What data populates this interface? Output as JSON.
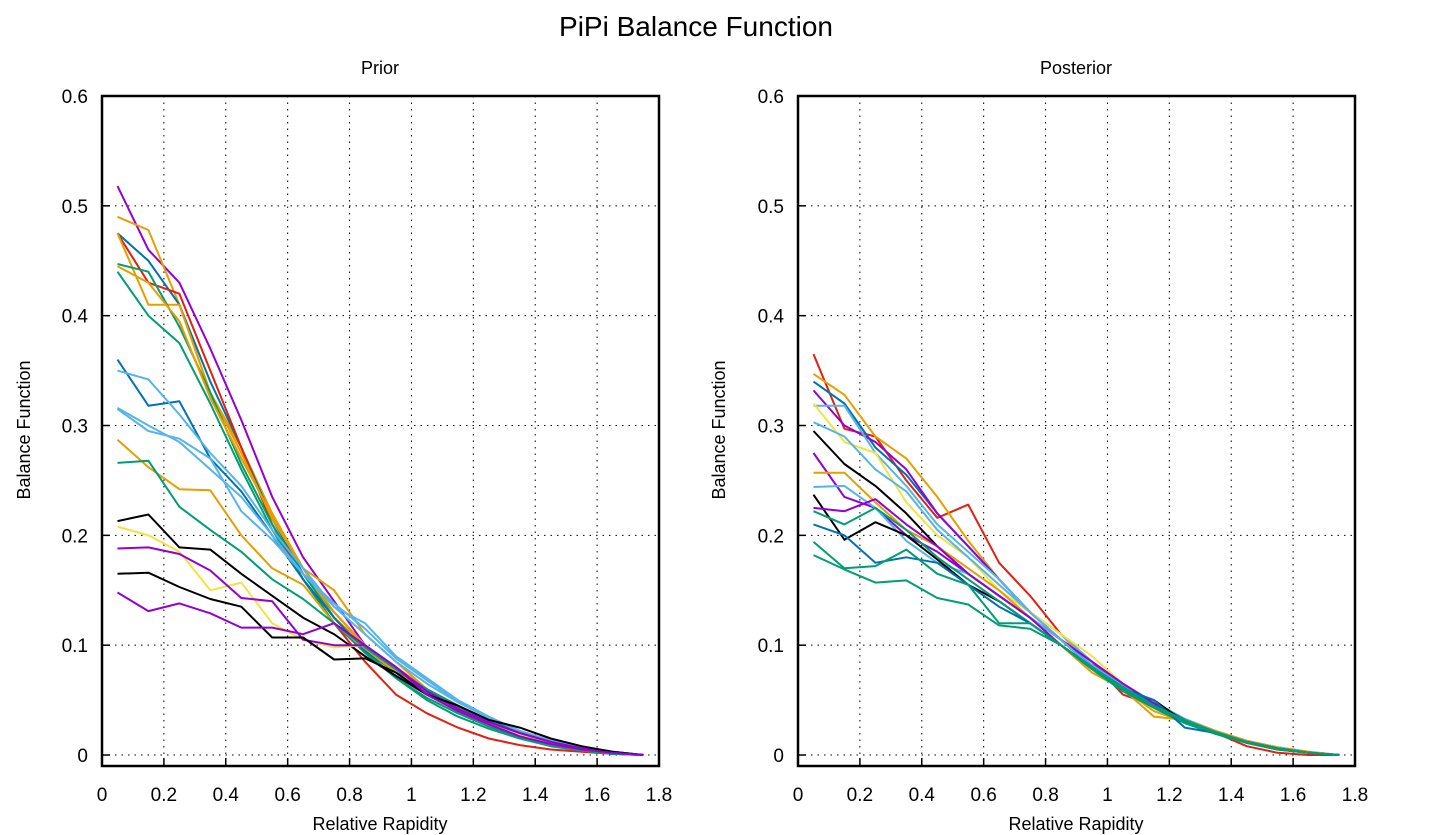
{
  "figure": {
    "title": "PiPi Balance Function"
  },
  "chart_data": [
    {
      "type": "line",
      "title": "Prior",
      "xlabel": "Relative Rapidity",
      "ylabel": "Balance Function",
      "xlim": [
        0,
        1.8
      ],
      "ylim": [
        -0.01,
        0.6
      ],
      "xticks": [
        0,
        0.2,
        0.4,
        0.6,
        0.8,
        1,
        1.2,
        1.4,
        1.6,
        1.8
      ],
      "yticks": [
        0,
        0.1,
        0.2,
        0.3,
        0.4,
        0.5,
        0.6
      ],
      "xtick_labels": [
        "0",
        "0.2",
        "0.4",
        "0.6",
        "0.8",
        "1",
        "1.2",
        "1.4",
        "1.6",
        "1.8"
      ],
      "ytick_labels": [
        "0",
        "0.1",
        "0.2",
        "0.3",
        "0.4",
        "0.5",
        "0.6"
      ],
      "grid": true,
      "x": [
        0.05,
        0.15,
        0.25,
        0.35,
        0.45,
        0.55,
        0.65,
        0.75,
        0.85,
        0.95,
        1.05,
        1.15,
        1.25,
        1.35,
        1.45,
        1.55,
        1.65,
        1.75
      ],
      "series": [
        {
          "color": "#9400d3",
          "values": [
            0.518,
            0.46,
            0.43,
            0.37,
            0.305,
            0.235,
            0.18,
            0.14,
            0.1,
            0.075,
            0.055,
            0.04,
            0.028,
            0.018,
            0.01,
            0.006,
            0.003,
            0.0
          ]
        },
        {
          "color": "#e69f00",
          "values": [
            0.49,
            0.478,
            0.41,
            0.33,
            0.28,
            0.22,
            0.17,
            0.15,
            0.11,
            0.085,
            0.06,
            0.045,
            0.03,
            0.02,
            0.012,
            0.006,
            0.002,
            0.0
          ]
        },
        {
          "color": "#0072b2",
          "values": [
            0.475,
            0.45,
            0.41,
            0.34,
            0.28,
            0.215,
            0.165,
            0.13,
            0.1,
            0.078,
            0.057,
            0.042,
            0.03,
            0.02,
            0.012,
            0.006,
            0.002,
            0.0
          ]
        },
        {
          "color": "#e51e10",
          "values": [
            0.475,
            0.43,
            0.42,
            0.35,
            0.28,
            0.21,
            0.16,
            0.12,
            0.085,
            0.055,
            0.038,
            0.025,
            0.015,
            0.009,
            0.005,
            0.003,
            0.001,
            0.0
          ]
        },
        {
          "color": "#e69f00",
          "values": [
            0.475,
            0.41,
            0.41,
            0.33,
            0.275,
            0.215,
            0.17,
            0.125,
            0.1,
            0.08,
            0.06,
            0.045,
            0.032,
            0.02,
            0.011,
            0.005,
            0.002,
            0.0
          ]
        },
        {
          "color": "#009e73",
          "values": [
            0.447,
            0.44,
            0.39,
            0.33,
            0.265,
            0.21,
            0.165,
            0.125,
            0.095,
            0.07,
            0.05,
            0.035,
            0.024,
            0.015,
            0.008,
            0.004,
            0.001,
            0.0
          ]
        },
        {
          "color": "#009e73",
          "values": [
            0.44,
            0.4,
            0.375,
            0.32,
            0.26,
            0.205,
            0.16,
            0.12,
            0.093,
            0.07,
            0.052,
            0.038,
            0.026,
            0.016,
            0.009,
            0.004,
            0.001,
            0.0
          ]
        },
        {
          "color": "#e69f00",
          "values": [
            0.445,
            0.43,
            0.395,
            0.325,
            0.27,
            0.218,
            0.17,
            0.13,
            0.1,
            0.075,
            0.055,
            0.04,
            0.028,
            0.018,
            0.01,
            0.005,
            0.002,
            0.0
          ]
        },
        {
          "color": "#0072b2",
          "values": [
            0.36,
            0.318,
            0.322,
            0.27,
            0.24,
            0.2,
            0.16,
            0.125,
            0.095,
            0.075,
            0.06,
            0.045,
            0.032,
            0.022,
            0.013,
            0.007,
            0.003,
            0.0
          ]
        },
        {
          "color": "#56b4e9",
          "values": [
            0.35,
            0.342,
            0.31,
            0.275,
            0.245,
            0.205,
            0.17,
            0.135,
            0.11,
            0.085,
            0.065,
            0.048,
            0.034,
            0.022,
            0.013,
            0.007,
            0.003,
            0.0
          ]
        },
        {
          "color": "#56b4e9",
          "values": [
            0.316,
            0.3,
            0.285,
            0.26,
            0.235,
            0.2,
            0.165,
            0.135,
            0.12,
            0.09,
            0.07,
            0.05,
            0.035,
            0.022,
            0.013,
            0.007,
            0.003,
            0.0
          ]
        },
        {
          "color": "#56b4e9",
          "values": [
            0.315,
            0.295,
            0.288,
            0.27,
            0.222,
            0.196,
            0.165,
            0.138,
            0.115,
            0.088,
            0.068,
            0.049,
            0.034,
            0.022,
            0.013,
            0.007,
            0.003,
            0.0
          ]
        },
        {
          "color": "#e69f00",
          "values": [
            0.287,
            0.262,
            0.242,
            0.241,
            0.2,
            0.17,
            0.155,
            0.12,
            0.097,
            0.075,
            0.058,
            0.042,
            0.03,
            0.02,
            0.012,
            0.006,
            0.002,
            0.0
          ]
        },
        {
          "color": "#009e73",
          "values": [
            0.266,
            0.268,
            0.226,
            0.205,
            0.185,
            0.16,
            0.142,
            0.12,
            0.098,
            0.078,
            0.06,
            0.044,
            0.031,
            0.02,
            0.012,
            0.006,
            0.002,
            0.0
          ]
        },
        {
          "color": "#000000",
          "values": [
            0.213,
            0.219,
            0.189,
            0.187,
            0.165,
            0.145,
            0.125,
            0.11,
            0.09,
            0.072,
            0.055,
            0.04,
            0.028,
            0.018,
            0.01,
            0.005,
            0.002,
            0.0
          ]
        },
        {
          "color": "#f0e442",
          "values": [
            0.208,
            0.2,
            0.185,
            0.15,
            0.157,
            0.12,
            0.105,
            0.098,
            0.1,
            0.08,
            0.055,
            0.04,
            0.028,
            0.018,
            0.01,
            0.005,
            0.002,
            0.0
          ]
        },
        {
          "color": "#9400d3",
          "values": [
            0.188,
            0.189,
            0.183,
            0.168,
            0.143,
            0.14,
            0.105,
            0.1,
            0.1,
            0.08,
            0.058,
            0.042,
            0.03,
            0.02,
            0.012,
            0.006,
            0.002,
            0.0
          ]
        },
        {
          "color": "#000000",
          "values": [
            0.165,
            0.166,
            0.153,
            0.142,
            0.135,
            0.107,
            0.107,
            0.087,
            0.088,
            0.075,
            0.055,
            0.045,
            0.032,
            0.025,
            0.015,
            0.008,
            0.003,
            0.0
          ]
        },
        {
          "color": "#9400d3",
          "values": [
            0.148,
            0.131,
            0.138,
            0.129,
            0.116,
            0.116,
            0.11,
            0.12,
            0.1,
            0.08,
            0.055,
            0.04,
            0.028,
            0.017,
            0.01,
            0.005,
            0.002,
            0.0
          ]
        }
      ]
    },
    {
      "type": "line",
      "title": "Posterior",
      "xlabel": "Relative Rapidity",
      "ylabel": "Balance Function",
      "xlim": [
        0,
        1.8
      ],
      "ylim": [
        -0.01,
        0.6
      ],
      "xticks": [
        0,
        0.2,
        0.4,
        0.6,
        0.8,
        1,
        1.2,
        1.4,
        1.6,
        1.8
      ],
      "yticks": [
        0,
        0.1,
        0.2,
        0.3,
        0.4,
        0.5,
        0.6
      ],
      "xtick_labels": [
        "0",
        "0.2",
        "0.4",
        "0.6",
        "0.8",
        "1",
        "1.2",
        "1.4",
        "1.6",
        "1.8"
      ],
      "ytick_labels": [
        "0",
        "0.1",
        "0.2",
        "0.3",
        "0.4",
        "0.5",
        "0.6"
      ],
      "grid": true,
      "x": [
        0.05,
        0.15,
        0.25,
        0.35,
        0.45,
        0.55,
        0.65,
        0.75,
        0.85,
        0.95,
        1.05,
        1.15,
        1.25,
        1.35,
        1.45,
        1.55,
        1.65,
        1.75
      ],
      "series": [
        {
          "color": "#e51e10",
          "values": [
            0.365,
            0.297,
            0.29,
            0.25,
            0.216,
            0.228,
            0.175,
            0.145,
            0.11,
            0.085,
            0.055,
            0.045,
            0.03,
            0.02,
            0.008,
            0.002,
            0.0,
            0.0
          ]
        },
        {
          "color": "#e69f00",
          "values": [
            0.347,
            0.328,
            0.29,
            0.27,
            0.235,
            0.195,
            0.16,
            0.13,
            0.11,
            0.08,
            0.06,
            0.04,
            0.03,
            0.02,
            0.012,
            0.006,
            0.002,
            0.0
          ]
        },
        {
          "color": "#0072b2",
          "values": [
            0.34,
            0.32,
            0.28,
            0.255,
            0.22,
            0.19,
            0.16,
            0.13,
            0.105,
            0.08,
            0.06,
            0.045,
            0.03,
            0.02,
            0.012,
            0.006,
            0.002,
            0.0
          ]
        },
        {
          "color": "#9400d3",
          "values": [
            0.332,
            0.3,
            0.285,
            0.26,
            0.22,
            0.19,
            0.16,
            0.13,
            0.105,
            0.085,
            0.063,
            0.046,
            0.032,
            0.021,
            0.012,
            0.006,
            0.002,
            0.0
          ]
        },
        {
          "color": "#56b4e9",
          "values": [
            0.318,
            0.318,
            0.275,
            0.245,
            0.21,
            0.185,
            0.16,
            0.13,
            0.11,
            0.085,
            0.065,
            0.048,
            0.033,
            0.022,
            0.013,
            0.007,
            0.003,
            0.0
          ]
        },
        {
          "color": "#f0e442",
          "values": [
            0.32,
            0.285,
            0.275,
            0.23,
            0.2,
            0.18,
            0.15,
            0.13,
            0.11,
            0.09,
            0.065,
            0.045,
            0.032,
            0.021,
            0.012,
            0.006,
            0.002,
            0.0
          ]
        },
        {
          "color": "#56b4e9",
          "values": [
            0.303,
            0.29,
            0.26,
            0.24,
            0.205,
            0.18,
            0.155,
            0.13,
            0.105,
            0.082,
            0.063,
            0.046,
            0.032,
            0.021,
            0.012,
            0.006,
            0.002,
            0.0
          ]
        },
        {
          "color": "#000000",
          "values": [
            0.295,
            0.265,
            0.245,
            0.22,
            0.19,
            0.165,
            0.145,
            0.125,
            0.105,
            0.08,
            0.06,
            0.045,
            0.03,
            0.02,
            0.011,
            0.005,
            0.002,
            0.0
          ]
        },
        {
          "color": "#9400d3",
          "values": [
            0.275,
            0.235,
            0.225,
            0.2,
            0.185,
            0.165,
            0.145,
            0.125,
            0.105,
            0.085,
            0.065,
            0.047,
            0.032,
            0.021,
            0.012,
            0.006,
            0.002,
            0.0
          ]
        },
        {
          "color": "#e69f00",
          "values": [
            0.257,
            0.257,
            0.23,
            0.205,
            0.19,
            0.17,
            0.15,
            0.125,
            0.1,
            0.075,
            0.06,
            0.035,
            0.032,
            0.022,
            0.013,
            0.007,
            0.003,
            0.0
          ]
        },
        {
          "color": "#56b4e9",
          "values": [
            0.244,
            0.245,
            0.225,
            0.195,
            0.175,
            0.165,
            0.145,
            0.125,
            0.105,
            0.08,
            0.06,
            0.045,
            0.03,
            0.02,
            0.012,
            0.006,
            0.002,
            0.0
          ]
        },
        {
          "color": "#000000",
          "values": [
            0.237,
            0.196,
            0.212,
            0.2,
            0.178,
            0.155,
            0.14,
            0.12,
            0.1,
            0.08,
            0.06,
            0.05,
            0.03,
            0.02,
            0.012,
            0.006,
            0.002,
            0.0
          ]
        },
        {
          "color": "#9400d3",
          "values": [
            0.225,
            0.222,
            0.233,
            0.21,
            0.19,
            0.165,
            0.145,
            0.125,
            0.1,
            0.08,
            0.06,
            0.045,
            0.03,
            0.02,
            0.012,
            0.006,
            0.002,
            0.0
          ]
        },
        {
          "color": "#009e73",
          "values": [
            0.222,
            0.21,
            0.225,
            0.205,
            0.18,
            0.16,
            0.14,
            0.12,
            0.1,
            0.078,
            0.058,
            0.043,
            0.029,
            0.019,
            0.011,
            0.005,
            0.002,
            0.0
          ]
        },
        {
          "color": "#0072b2",
          "values": [
            0.21,
            0.2,
            0.175,
            0.18,
            0.175,
            0.155,
            0.135,
            0.12,
            0.1,
            0.08,
            0.06,
            0.05,
            0.025,
            0.02,
            0.012,
            0.006,
            0.002,
            0.0
          ]
        },
        {
          "color": "#009e73",
          "values": [
            0.194,
            0.17,
            0.172,
            0.187,
            0.165,
            0.155,
            0.12,
            0.12,
            0.1,
            0.08,
            0.06,
            0.045,
            0.03,
            0.02,
            0.012,
            0.006,
            0.002,
            0.0
          ]
        },
        {
          "color": "#009e73",
          "values": [
            0.182,
            0.169,
            0.157,
            0.159,
            0.143,
            0.137,
            0.118,
            0.115,
            0.1,
            0.08,
            0.062,
            0.045,
            0.032,
            0.021,
            0.012,
            0.006,
            0.002,
            0.0
          ]
        }
      ]
    }
  ]
}
